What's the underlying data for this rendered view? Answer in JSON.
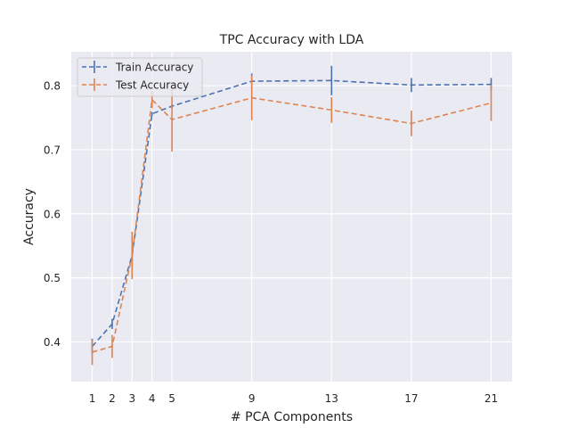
{
  "chart_data": {
    "type": "line",
    "title": "TPC Accuracy with LDA",
    "xlabel": "# PCA Components",
    "ylabel": "Accuracy",
    "x": [
      1,
      2,
      3,
      4,
      5,
      9,
      13,
      17,
      21
    ],
    "x_ticks": [
      1,
      2,
      3,
      4,
      5,
      9,
      13,
      17,
      21
    ],
    "y_ticks": [
      0.4,
      0.5,
      0.6,
      0.7,
      0.8
    ],
    "xlim": [
      -0.05,
      22.05
    ],
    "ylim": [
      0.338,
      0.853
    ],
    "grid": true,
    "legend_position": "top-left",
    "series": [
      {
        "name": "Train Accuracy",
        "color": "#4c72b0",
        "values": [
          0.393,
          0.428,
          0.535,
          0.756,
          0.768,
          0.807,
          0.808,
          0.801,
          0.802
        ],
        "errors": [
          0.012,
          0.008,
          0.015,
          0.003,
          0.003,
          0.012,
          0.023,
          0.011,
          0.01
        ]
      },
      {
        "name": "Test Accuracy",
        "color": "#dd8452",
        "values": [
          0.384,
          0.393,
          0.535,
          0.778,
          0.747,
          0.781,
          0.762,
          0.741,
          0.773
        ],
        "errors": [
          0.02,
          0.018,
          0.037,
          0.013,
          0.05,
          0.035,
          0.02,
          0.02,
          0.028
        ]
      }
    ]
  }
}
